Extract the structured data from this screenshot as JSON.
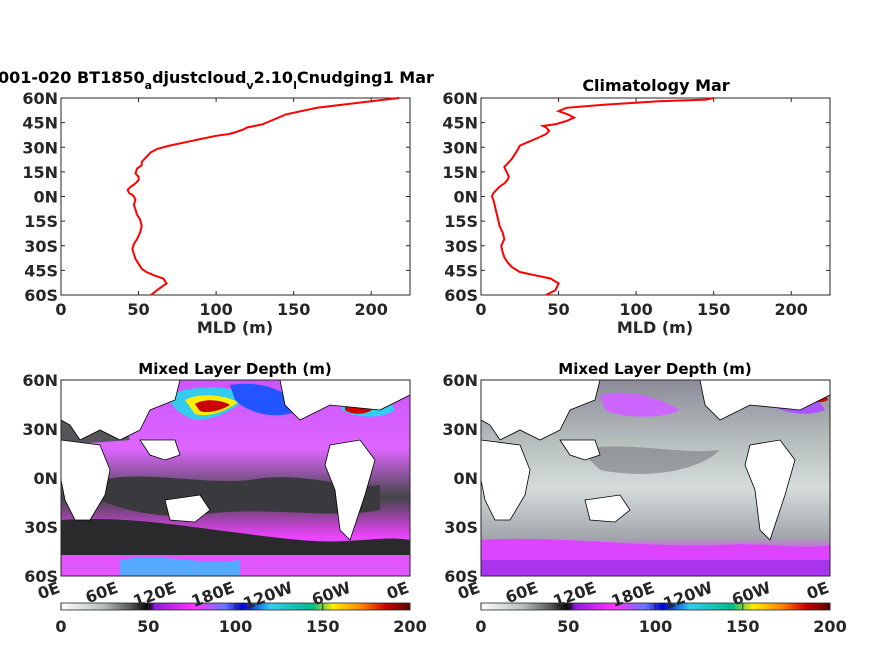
{
  "chart_data": [
    {
      "type": "line",
      "title": "001-020 BT1850",
      "title_sub1": "a",
      "title_mid": "djustcloud",
      "title_sub2": "v",
      "title_mid2": "2.10",
      "title_sub3": "l",
      "title_end": "Cnudging1 Mar",
      "xlabel": "MLD (m)",
      "xlim": [
        0,
        225
      ],
      "xticks": [
        "0",
        "50",
        "100",
        "150",
        "200"
      ],
      "xtick_values": [
        0,
        50,
        100,
        150,
        200
      ],
      "ylim": [
        -60,
        60
      ],
      "yticks": [
        "60N",
        "45N",
        "30N",
        "15N",
        "0N",
        "15S",
        "30S",
        "45S",
        "60S"
      ],
      "ytick_values": [
        60,
        45,
        30,
        15,
        0,
        -15,
        -30,
        -45,
        -60
      ],
      "color": "#ff0000",
      "series": [
        {
          "x": [
            58,
            62,
            68,
            66,
            60,
            55,
            52,
            50,
            48,
            47,
            46,
            47,
            49,
            51,
            52,
            51,
            49,
            48,
            47,
            48,
            47,
            46,
            44,
            43,
            45,
            48,
            50,
            50,
            48,
            49,
            52,
            52,
            55,
            58,
            62,
            70,
            80,
            90,
            100,
            108,
            112,
            115,
            118,
            120,
            125,
            130,
            135,
            145,
            165,
            200,
            218
          ],
          "y": [
            -60,
            -57,
            -53,
            -50,
            -48,
            -46,
            -44,
            -41,
            -38,
            -35,
            -32,
            -29,
            -26,
            -22,
            -18,
            -14,
            -11,
            -8,
            -5,
            -2,
            0,
            1,
            2,
            4,
            6,
            8,
            10,
            12,
            14,
            17,
            19,
            21,
            24,
            27,
            29,
            31,
            33,
            35,
            37,
            38,
            39,
            40,
            41,
            42,
            43,
            44,
            46,
            50,
            54,
            58,
            60
          ]
        }
      ]
    },
    {
      "type": "line",
      "title": "Climatology Mar",
      "xlabel": "MLD (m)",
      "xlim": [
        0,
        225
      ],
      "xticks": [
        "0",
        "50",
        "100",
        "150",
        "200"
      ],
      "xtick_values": [
        0,
        50,
        100,
        150,
        200
      ],
      "ylim": [
        -60,
        60
      ],
      "yticks": [
        "60N",
        "45N",
        "30N",
        "15N",
        "0N",
        "15S",
        "30S",
        "45S",
        "60S"
      ],
      "ytick_values": [
        60,
        45,
        30,
        15,
        0,
        -15,
        -30,
        -45,
        -60
      ],
      "color": "#ff0000",
      "series": [
        {
          "x": [
            42,
            48,
            50,
            45,
            35,
            25,
            20,
            17,
            15,
            14,
            13,
            15,
            14,
            12,
            11,
            10,
            9,
            8,
            7,
            8,
            10,
            12,
            15,
            17,
            18,
            17,
            16,
            15,
            17,
            20,
            22,
            24,
            25,
            30,
            35,
            42,
            44,
            42,
            40,
            48,
            55,
            60,
            56,
            50,
            55,
            80,
            115,
            145,
            150
          ],
          "y": [
            -60,
            -57,
            -53,
            -50,
            -48,
            -46,
            -43,
            -40,
            -37,
            -34,
            -30,
            -26,
            -22,
            -18,
            -14,
            -10,
            -6,
            -2,
            0,
            2,
            4,
            6,
            8,
            10,
            12,
            14,
            16,
            18,
            20,
            23,
            26,
            29,
            31,
            33,
            35,
            38,
            40,
            42,
            43,
            44,
            46,
            48,
            50,
            52,
            54,
            56,
            58,
            59,
            60
          ]
        }
      ]
    },
    {
      "type": "heatmap",
      "title": "Mixed Layer Depth (m)",
      "xticks": [
        "0E",
        "60E",
        "120E",
        "180E",
        "120W",
        "60W",
        "0E"
      ],
      "yticks": [
        "60N",
        "30N",
        "0N",
        "30S",
        "60S"
      ],
      "ylim": [
        -60,
        60
      ],
      "colorbar_ticks": [
        "0",
        "50",
        "100",
        "150",
        "200"
      ],
      "colorbar_range": [
        0,
        200
      ]
    },
    {
      "type": "heatmap",
      "title": "Mixed Layer Depth (m)",
      "xticks": [
        "0E",
        "60E",
        "120E",
        "180E",
        "120W",
        "60W",
        "0E"
      ],
      "yticks": [
        "60N",
        "30N",
        "0N",
        "30S",
        "60S"
      ],
      "ylim": [
        -60,
        60
      ],
      "colorbar_ticks": [
        "0",
        "50",
        "100",
        "150",
        "200"
      ],
      "colorbar_range": [
        0,
        200
      ]
    }
  ],
  "colormap": [
    "#ffffff",
    "#c9cfcf",
    "#7a7a80",
    "#2a2a2a",
    "#000000",
    "#a020f0",
    "#ff33ff",
    "#cc66ff",
    "#3355ff",
    "#0000cc",
    "#33ccee",
    "#00ccaa",
    "#ffee00",
    "#ff8800",
    "#cc0000",
    "#660000"
  ]
}
